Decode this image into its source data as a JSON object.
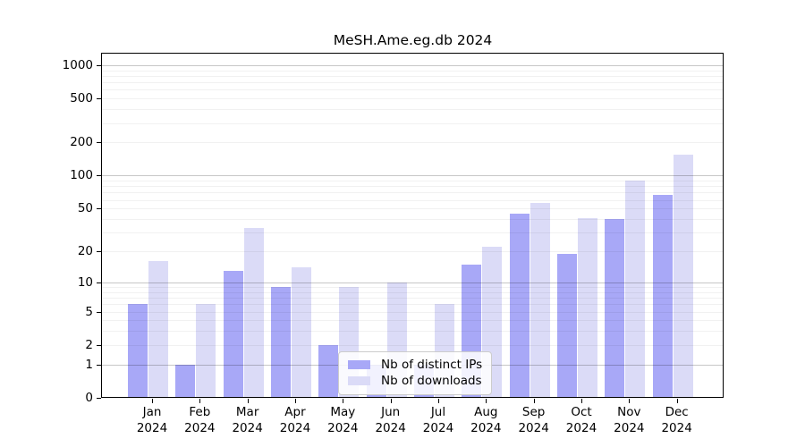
{
  "title": "MeSH.Ame.eg.db 2024",
  "chart_data": {
    "type": "bar",
    "title": "MeSH.Ame.eg.db 2024",
    "scale": "log10(value+1)",
    "grid": true,
    "legend_position": "bottom-center-inside",
    "categories": [
      "Jan",
      "Feb",
      "Mar",
      "Apr",
      "May",
      "Jun",
      "Jul",
      "Aug",
      "Sep",
      "Oct",
      "Nov",
      "Dec"
    ],
    "category_year": "2024",
    "series": [
      {
        "name": "Nb of distinct IPs",
        "color": "#a8a8f7",
        "values": [
          6,
          1,
          13,
          9,
          2,
          1,
          1,
          15,
          45,
          19,
          40,
          67
        ]
      },
      {
        "name": "Nb of downloads",
        "color": "#dbdbf7",
        "values": [
          16,
          6,
          33,
          14,
          9,
          10,
          6,
          22,
          56,
          41,
          90,
          155
        ]
      }
    ],
    "y_ticks": [
      0,
      1,
      2,
      5,
      10,
      20,
      50,
      100,
      200,
      500,
      1000
    ],
    "major_gridlines": [
      1,
      10,
      100,
      1000
    ],
    "minor_gridlines": [
      2,
      3,
      4,
      5,
      6,
      7,
      8,
      9,
      20,
      30,
      40,
      50,
      60,
      70,
      80,
      90,
      200,
      300,
      400,
      500,
      600,
      700,
      800,
      900
    ],
    "ylim": [
      0,
      1000
    ]
  }
}
